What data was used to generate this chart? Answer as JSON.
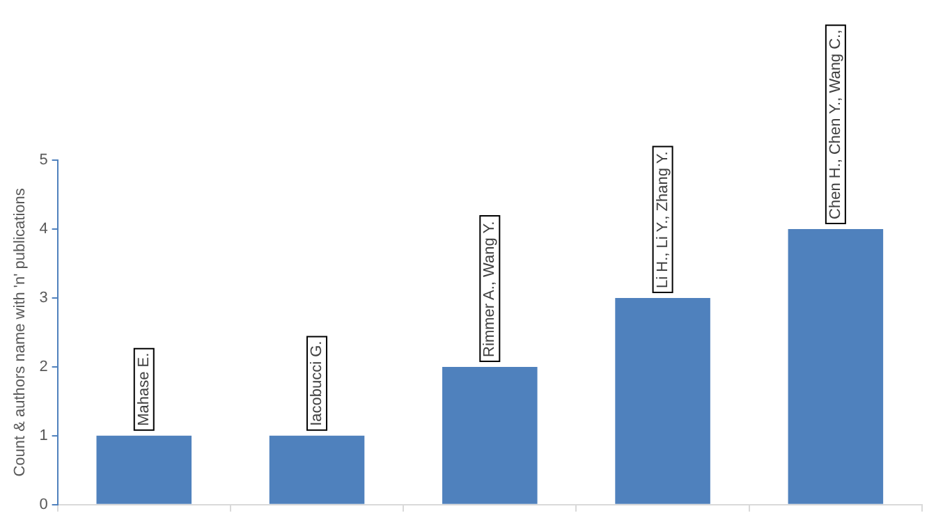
{
  "chart_data": {
    "type": "bar",
    "ylabel": "Count & authors name with 'n' publications",
    "categories": [
      null,
      null,
      null,
      null,
      null
    ],
    "values": [
      1,
      1,
      2,
      3,
      4
    ],
    "value_labels": [
      "Mahase E.",
      "Iacobucci G.",
      "Rimmer A., Wang Y.",
      "Li H., Li Y., Zhang Y.",
      "Chen H., Chen Y., Wang C.,"
    ],
    "color": "#4f81bd",
    "ylim": [
      0,
      5
    ],
    "yticks": [
      0,
      1,
      2,
      3,
      4,
      5
    ],
    "grid": false,
    "legend": false
  }
}
